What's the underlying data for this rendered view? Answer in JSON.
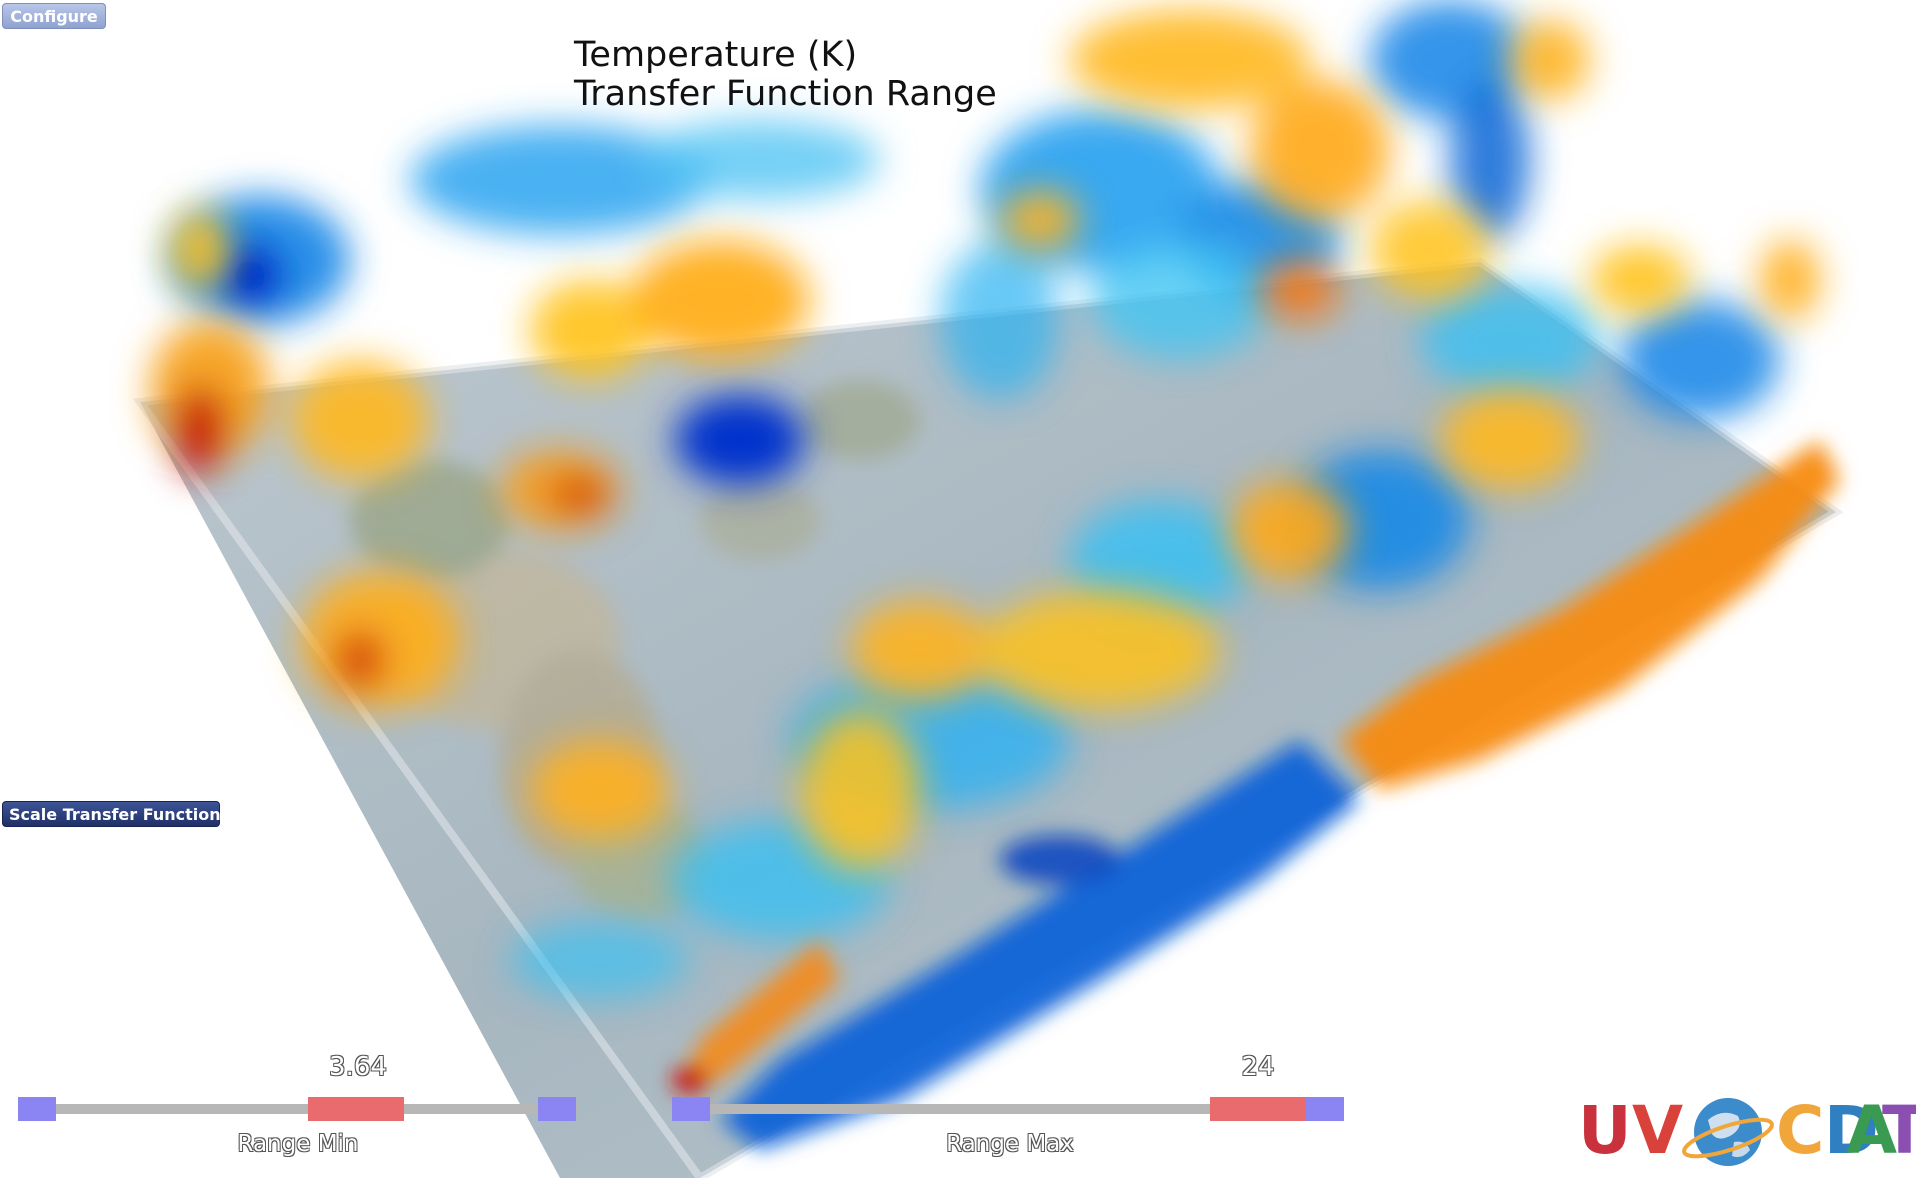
{
  "buttons": {
    "configure_label": "Configure",
    "scale_tf_label": "Scale Transfer Function"
  },
  "title": {
    "line1": "Temperature (K)",
    "line2": "Transfer Function Range"
  },
  "sliders": {
    "range_min": {
      "label": "Range Min",
      "value_text": "3.64"
    },
    "range_max": {
      "label": "Range Max",
      "value_text": "24"
    }
  },
  "logo": {
    "letters": [
      "U",
      "V",
      "C",
      "D",
      "A",
      "T"
    ],
    "colors": {
      "U": "#c9323c",
      "V": "#d9423a",
      "C": "#f0a63a",
      "D": "#2f7fc1",
      "A": "#3a9a52",
      "T": "#8a4fb0"
    },
    "globe_icon": "globe-icon"
  },
  "colors": {
    "accent_blue": "#8a85f2",
    "thumb_red": "#ea6b6e",
    "track_gray": "#b7b7b7",
    "cold": "#1a7fe0",
    "warm": "#f7a21c"
  }
}
